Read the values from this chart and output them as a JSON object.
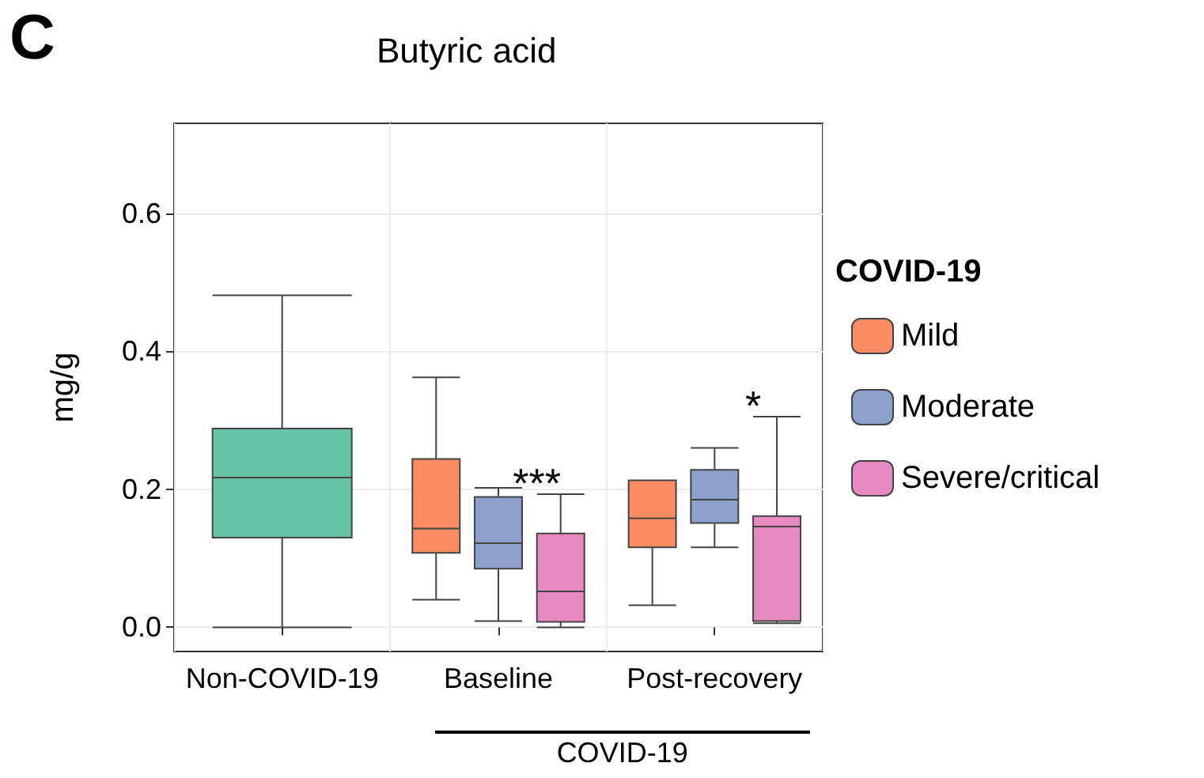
{
  "chart_data": {
    "type": "box",
    "title": "Butyric acid",
    "ylabel": "mg/g",
    "legend_title": "COVID-19",
    "categories": [
      "Non-COVID-19",
      "Baseline",
      "Post-recovery"
    ],
    "series": [
      {
        "color": "#66c2a5",
        "boxes": [
          {
            "low": 0.0,
            "q1": 0.13,
            "median": 0.217,
            "q3": 0.288,
            "high": 0.481
          },
          null,
          null
        ]
      },
      {
        "name": "Mild",
        "color": "#fc8d62",
        "boxes": [
          null,
          {
            "low": 0.04,
            "q1": 0.108,
            "median": 0.143,
            "q3": 0.244,
            "high": 0.362
          },
          {
            "low": 0.032,
            "q1": 0.116,
            "median": 0.158,
            "q3": 0.213,
            "high": 0.213
          }
        ]
      },
      {
        "name": "Moderate",
        "color": "#8da0cb",
        "boxes": [
          null,
          {
            "low": 0.009,
            "q1": 0.085,
            "median": 0.122,
            "q3": 0.189,
            "high": 0.202
          },
          {
            "low": 0.116,
            "q1": 0.151,
            "median": 0.185,
            "q3": 0.228,
            "high": 0.26
          }
        ]
      },
      {
        "name": "Severe/critical",
        "color": "#e78ac3",
        "boxes": [
          null,
          {
            "low": 0.0,
            "q1": 0.008,
            "median": 0.052,
            "q3": 0.136,
            "high": 0.193
          },
          {
            "low": 0.006,
            "q1": 0.009,
            "median": 0.146,
            "q3": 0.161,
            "high": 0.305
          }
        ]
      }
    ],
    "ylim": [
      -0.035,
      0.73
    ],
    "yticks": [
      {
        "value": 0,
        "label": "0.0"
      },
      {
        "value": 0.2,
        "label": "0.2"
      },
      {
        "value": 0.4,
        "label": "0.4"
      },
      {
        "value": 0.6,
        "label": "0.6"
      }
    ],
    "grid": true,
    "legend": "right",
    "annotations": [
      "C",
      "***",
      "*",
      "COVID-19"
    ]
  }
}
